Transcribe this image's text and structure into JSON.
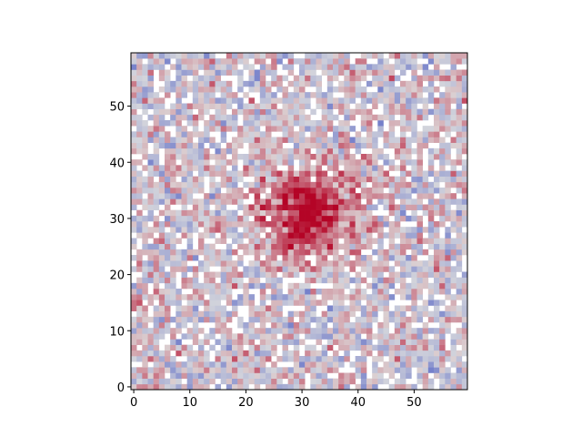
{
  "chart_data": {
    "type": "heatmap",
    "title": "",
    "xlabel": "",
    "ylabel": "",
    "colormap": "coolwarm",
    "colormap_colors": {
      "low": "#3b4cc0",
      "mid": "#dddddd",
      "high": "#b40426"
    },
    "grid_size": [
      60,
      60
    ],
    "xlim": [
      -0.5,
      59.5
    ],
    "ylim": [
      -0.5,
      59.5
    ],
    "x_ticks": [
      0,
      10,
      20,
      30,
      40,
      50
    ],
    "y_ticks": [
      0,
      10,
      20,
      30,
      40,
      50
    ],
    "x_tick_labels": [
      "0",
      "10",
      "20",
      "30",
      "40",
      "50"
    ],
    "y_tick_labels": [
      "0",
      "10",
      "20",
      "30",
      "40",
      "50"
    ],
    "origin": "lower",
    "features": [
      {
        "kind": "gaussian_source",
        "center": [
          31,
          31
        ],
        "peak": 1.0,
        "sigma_px": 5.5
      },
      {
        "kind": "gaussian_source",
        "center": [
          1,
          15
        ],
        "peak": 0.42,
        "sigma_px": 1.2
      },
      {
        "kind": "gaussian_source",
        "center": [
          51,
          43
        ],
        "peak": 0.28,
        "sigma_px": 0.9
      }
    ],
    "background": {
      "noise_amplitude": 0.3,
      "min_visible": 0.06
    },
    "grid": false,
    "legend": "none"
  }
}
